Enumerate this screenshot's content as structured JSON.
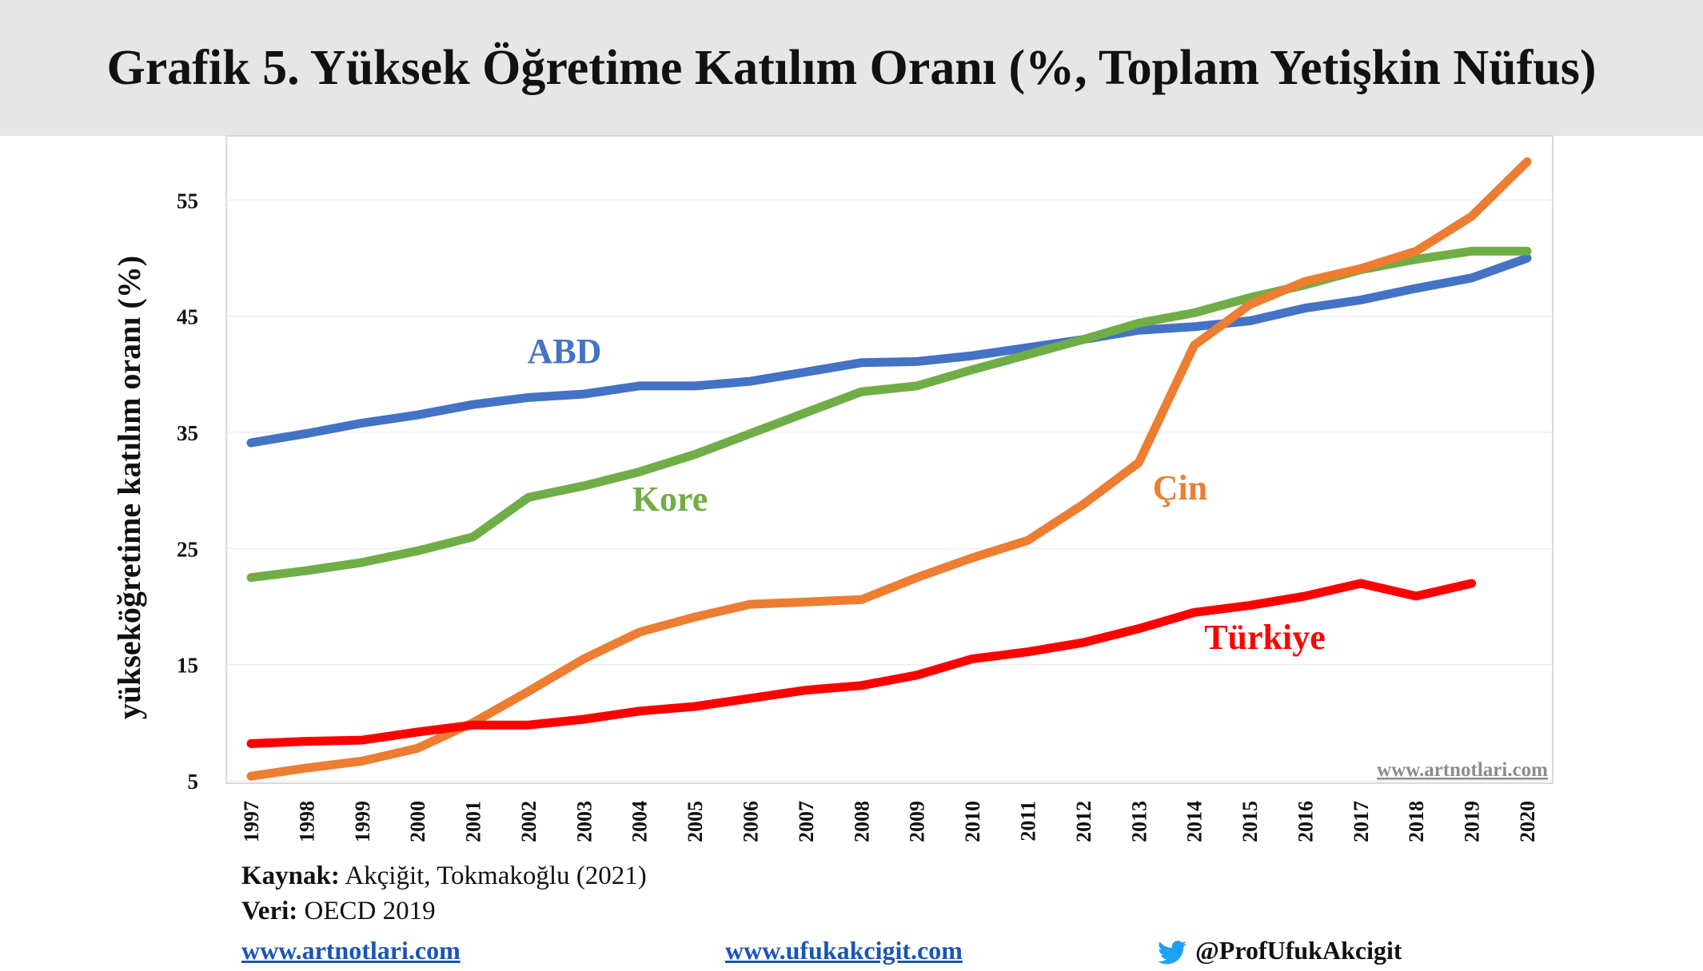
{
  "header": {
    "title": "Grafik 5. Yüksek Öğretime Katılım Oranı (%, Toplam Yetişkin Nüfus)"
  },
  "chart_data": {
    "type": "line",
    "title": "Grafik 5. Yüksek Öğretime Katılım Oranı (%, Toplam Yetişkin Nüfus)",
    "xlabel": "",
    "ylabel": "yükseköğretime katılım oranı (%)",
    "x": [
      "1997",
      "1998",
      "1999",
      "2000",
      "2001",
      "2002",
      "2003",
      "2004",
      "2005",
      "2006",
      "2007",
      "2008",
      "2009",
      "2010",
      "2011",
      "2012",
      "2013",
      "2014",
      "2015",
      "2016",
      "2017",
      "2018",
      "2019",
      "2020"
    ],
    "y_ticks": [
      5,
      15,
      25,
      35,
      45,
      55
    ],
    "ylim": [
      5,
      59.5
    ],
    "grid": true,
    "legend": "inline",
    "watermark": "www.artnotlari.com",
    "series": [
      {
        "name": "ABD",
        "color": "#4472c4",
        "values": [
          34.1,
          34.9,
          35.8,
          36.5,
          37.4,
          38.0,
          38.3,
          39.0,
          39.0,
          39.4,
          40.2,
          41.0,
          41.1,
          41.6,
          42.3,
          43.0,
          43.8,
          44.1,
          44.6,
          45.7,
          46.4,
          47.4,
          48.3,
          50.0
        ]
      },
      {
        "name": "Kore",
        "color": "#70ad47",
        "values": [
          22.5,
          23.1,
          23.8,
          24.8,
          26.0,
          29.4,
          30.4,
          31.6,
          33.1,
          34.9,
          36.7,
          38.5,
          39.0,
          40.4,
          41.7,
          43.0,
          44.4,
          45.3,
          46.6,
          47.7,
          49.0,
          49.9,
          50.6,
          50.6
        ]
      },
      {
        "name": "Çin",
        "color": "#ed7d31",
        "values": [
          5.4,
          6.1,
          6.7,
          7.8,
          10.0,
          12.7,
          15.5,
          17.8,
          19.1,
          20.2,
          20.4,
          20.6,
          22.5,
          24.2,
          25.7,
          28.8,
          32.4,
          42.5,
          46.0,
          48.0,
          49.1,
          50.6,
          53.6,
          58.3
        ]
      },
      {
        "name": "Türkiye",
        "color": "#ff0000",
        "values": [
          8.2,
          8.4,
          8.5,
          9.2,
          9.8,
          9.8,
          10.3,
          11.0,
          11.4,
          12.1,
          12.8,
          13.2,
          14.1,
          15.5,
          16.1,
          16.9,
          18.1,
          19.5,
          20.1,
          20.9,
          22.0,
          20.9,
          22.0,
          null
        ]
      }
    ]
  },
  "footer": {
    "source_label": "Kaynak:",
    "source_value": "Akçiğit, Tokmakoğlu (2021)",
    "data_label": "Veri:",
    "data_value": "OECD 2019",
    "link1": "www.artnotlari.com",
    "link2": "www.ufukakcigit.com",
    "twitter_handle": "@ProfUfukAkcigit",
    "twitter_icon": "twitter-bird-icon",
    "twitter_color": "#1da1f2",
    "link_color": "#1a55b8"
  }
}
